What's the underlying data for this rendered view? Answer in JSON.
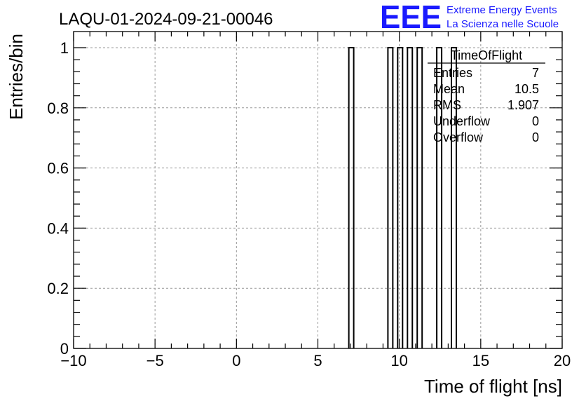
{
  "header": {
    "run_title": "LAQU-01-2024-09-21-00046",
    "logo_text": "EEE",
    "logo_line1": "Extreme Energy Events",
    "logo_line2": "La Scienza nelle Scuole"
  },
  "stats_box": {
    "title": "TimeOfFlight",
    "rows": [
      {
        "label": "Entries",
        "value": "7"
      },
      {
        "label": "Mean",
        "value": "10.5"
      },
      {
        "label": "RMS",
        "value": "1.907"
      },
      {
        "label": "Underflow",
        "value": "0"
      },
      {
        "label": "Overflow",
        "value": "0"
      }
    ]
  },
  "colors": {
    "logo": "#1a1aff",
    "grid": "#999999",
    "bars": "#000000"
  },
  "chart_data": {
    "type": "bar",
    "title": "LAQU-01-2024-09-21-00046",
    "xlabel": "Time of flight [ns]",
    "ylabel": "Entries/bin",
    "xlim": [
      -10,
      20
    ],
    "ylim": [
      0,
      1.05
    ],
    "xticks": [
      -10,
      -5,
      0,
      5,
      10,
      15,
      20
    ],
    "xtick_labels": [
      "−10",
      "−5",
      "0",
      "5",
      "10",
      "15",
      "20"
    ],
    "yticks": [
      0,
      0.2,
      0.4,
      0.6,
      0.8,
      1
    ],
    "ytick_labels": [
      "0",
      "0.2",
      "0.4",
      "0.6",
      "0.8",
      "1"
    ],
    "grid": true,
    "bin_width": 0.3,
    "bins": [
      {
        "x0": 6.9,
        "x1": 7.2,
        "value": 1
      },
      {
        "x0": 9.3,
        "x1": 9.6,
        "value": 1
      },
      {
        "x0": 9.9,
        "x1": 10.2,
        "value": 1
      },
      {
        "x0": 10.5,
        "x1": 10.8,
        "value": 1
      },
      {
        "x0": 11.1,
        "x1": 11.4,
        "value": 1
      },
      {
        "x0": 12.3,
        "x1": 12.6,
        "value": 1
      },
      {
        "x0": 13.2,
        "x1": 13.5,
        "value": 1
      }
    ]
  }
}
